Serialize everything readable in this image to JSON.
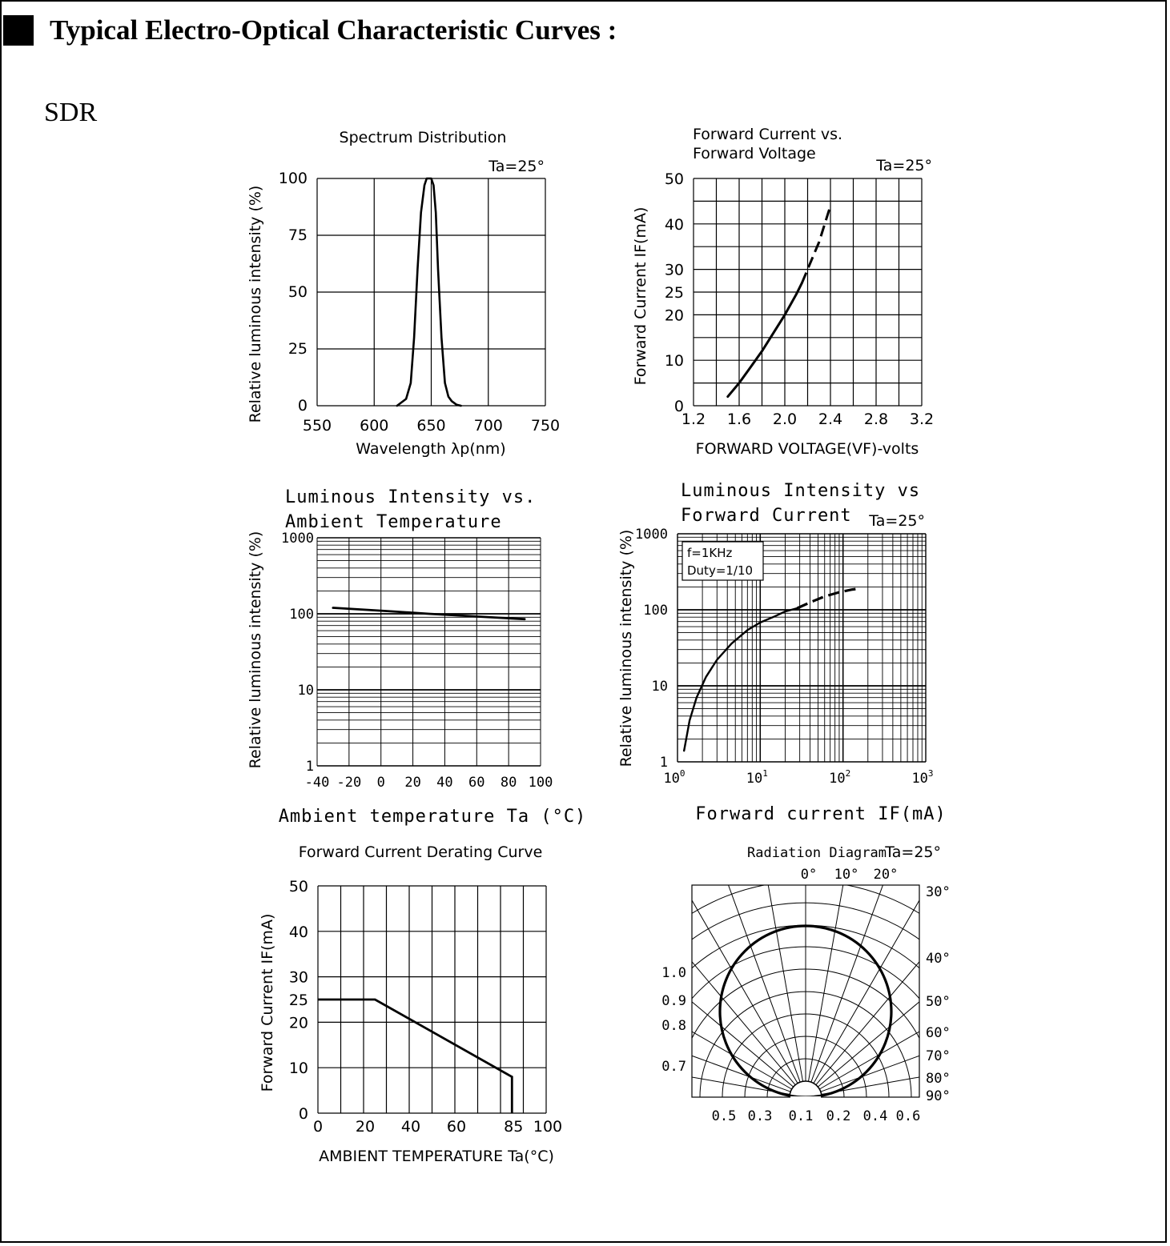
{
  "header": {
    "title": "Typical Electro-Optical Characteristic Curves :",
    "variant": "SDR"
  },
  "chart_data": [
    {
      "type": "line",
      "title": "Spectrum Distribution",
      "condition": "Ta=25°",
      "xlabel": "Wavelength λp(nm)",
      "ylabel": "Relative luminous intensity (%)",
      "xlim": [
        550,
        750
      ],
      "ylim": [
        0,
        100
      ],
      "xticks": [
        "550",
        "600",
        "650",
        "700",
        "750"
      ],
      "yticks": [
        "0",
        "25",
        "50",
        "75",
        "100"
      ],
      "x": [
        620,
        628,
        632,
        635,
        638,
        641,
        644,
        646,
        648,
        650,
        652,
        654,
        656,
        659,
        662,
        665,
        668,
        672,
        676
      ],
      "y": [
        0,
        3,
        10,
        30,
        60,
        85,
        97,
        100,
        100,
        100,
        97,
        85,
        60,
        30,
        10,
        4,
        2,
        0.5,
        0
      ]
    },
    {
      "type": "line",
      "title": "Forward Current vs. Forward Voltage",
      "condition": "Ta=25°",
      "xlabel": "FORWARD VOLTAGE(VF)-volts",
      "ylabel": "Forward Current IF(mA)",
      "xlim": [
        1.2,
        3.2
      ],
      "ylim": [
        0,
        50
      ],
      "xticks": [
        "1.2",
        "1.6",
        "2.0",
        "2.4",
        "2.8",
        "3.2"
      ],
      "yticks": [
        "0",
        "10",
        "20",
        "25",
        "30",
        "40",
        "50"
      ],
      "series": [
        {
          "style": "solid",
          "x": [
            1.5,
            1.6,
            1.7,
            1.8,
            1.9,
            2.0,
            2.1,
            2.15
          ],
          "y": [
            2,
            5,
            8.5,
            12,
            16,
            20,
            24.5,
            27
          ]
        },
        {
          "style": "dashed",
          "x": [
            2.15,
            2.2,
            2.25,
            2.3,
            2.35,
            2.4
          ],
          "y": [
            27,
            30,
            33,
            36,
            40,
            44
          ]
        }
      ]
    },
    {
      "type": "line",
      "title": "Luminous Intensity vs. Ambient Temperature",
      "xlabel": "Ambient temperature Ta (°C)",
      "ylabel": "Relative luminous intensity (%)",
      "xlim": [
        -40,
        100
      ],
      "ylim": [
        1,
        1000
      ],
      "yscale": "log",
      "xticks": [
        "-40",
        "-20",
        "0",
        "20",
        "40",
        "60",
        "80",
        "100"
      ],
      "yticks": [
        "1",
        "10",
        "100",
        "1000"
      ],
      "x": [
        -30,
        0,
        30,
        60,
        90
      ],
      "y": [
        120,
        110,
        100,
        92,
        85
      ]
    },
    {
      "type": "line",
      "title": "Luminous Intensity vs Forward Current",
      "condition": "Ta=25°",
      "annotation": [
        "f=1KHz",
        "Duty=1/10"
      ],
      "xlabel": "Forward current IF(mA)",
      "ylabel": "Relative luminous intensity (%)",
      "xlim": [
        1,
        1000
      ],
      "ylim": [
        1,
        1000
      ],
      "xscale": "log",
      "yscale": "log",
      "xticks": [
        "10^0",
        "10^1",
        "10^2",
        "10^3"
      ],
      "yticks": [
        "1",
        "10",
        "100",
        "1000"
      ],
      "series": [
        {
          "style": "solid",
          "x": [
            1.2,
            1.4,
            1.7,
            2.2,
            3,
            4.5,
            7,
            10,
            15,
            20,
            28
          ],
          "y": [
            1.4,
            3.5,
            7,
            13,
            22,
            36,
            54,
            68,
            82,
            95,
            105
          ]
        },
        {
          "style": "dashed",
          "x": [
            28,
            40,
            60,
            90,
            130,
            160
          ],
          "y": [
            105,
            125,
            150,
            170,
            185,
            190
          ]
        }
      ]
    },
    {
      "type": "line",
      "title": "Forward Current Derating Curve",
      "xlabel": "AMBIENT TEMPERATURE Ta(°C)",
      "ylabel": "Forward Current IF(mA)",
      "xlim": [
        0,
        100
      ],
      "ylim": [
        0,
        50
      ],
      "xticks": [
        "0",
        "20",
        "40",
        "60",
        "85",
        "100"
      ],
      "yticks": [
        "0",
        "10",
        "20",
        "25",
        "30",
        "40",
        "50"
      ],
      "x": [
        0,
        25,
        85,
        85
      ],
      "y": [
        25,
        25,
        8,
        0
      ]
    },
    {
      "type": "polar",
      "title": "Radiation Diagram",
      "condition": "Ta=25°",
      "angle_labels_top": [
        "0°",
        "10°",
        "20°"
      ],
      "angle_labels_right": [
        "30°",
        "40°",
        "50°",
        "60°",
        "70°",
        "80°",
        "90°"
      ],
      "radius_labels_left": [
        "1.0",
        "0.9",
        "0.8",
        "0.7"
      ],
      "bottom_labels": [
        "0.5",
        "0.3",
        "0.1",
        "0.2",
        "0.4",
        "0.6"
      ],
      "pattern": "circular lobe, relative intensity 1.0 at 0°"
    }
  ]
}
